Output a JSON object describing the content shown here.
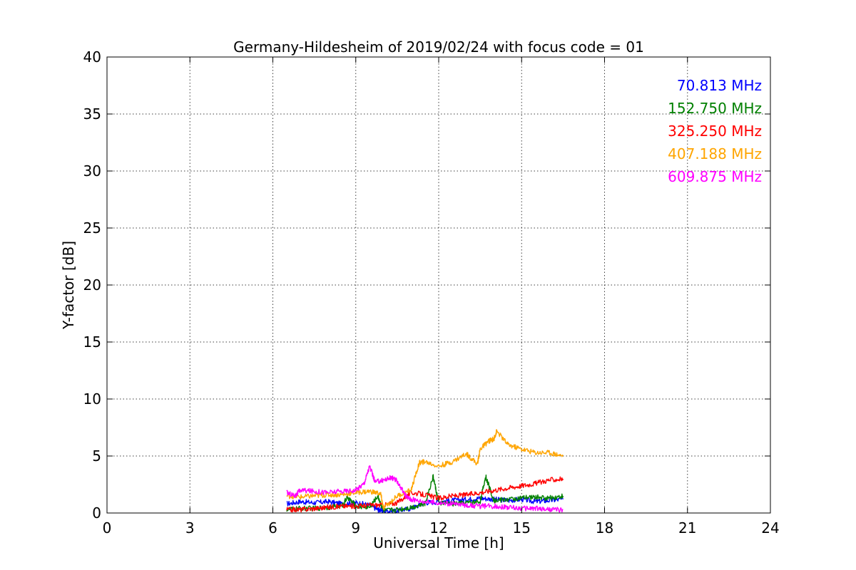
{
  "chart_data": {
    "type": "line",
    "title": "Germany-Hildesheim of 2019/02/24 with focus code = 01",
    "xlabel": "Universal Time [h]",
    "ylabel": "Y-factor [dB]",
    "xlim": [
      0,
      24
    ],
    "ylim": [
      0,
      40
    ],
    "xticks": [
      0,
      3,
      6,
      9,
      12,
      15,
      18,
      21,
      24
    ],
    "yticks": [
      0,
      5,
      10,
      15,
      20,
      25,
      30,
      35,
      40
    ],
    "xtick_labels": [
      "0",
      "3",
      "6",
      "9",
      "12",
      "15",
      "18",
      "21",
      "24"
    ],
    "ytick_labels": [
      "0",
      "5",
      "10",
      "15",
      "20",
      "25",
      "30",
      "35",
      "40"
    ],
    "grid": true,
    "legend_position": "top-right",
    "series": [
      {
        "name": "70.813 MHz",
        "color": "#0000ff",
        "x": [
          6.5,
          7.0,
          7.5,
          8.0,
          8.5,
          9.0,
          9.5,
          9.8,
          10.0,
          10.5,
          11.0,
          11.5,
          12.0,
          12.5,
          13.0,
          13.5,
          14.0,
          14.5,
          15.0,
          15.5,
          16.0,
          16.5
        ],
        "y": [
          0.8,
          1.0,
          0.9,
          1.0,
          0.8,
          0.9,
          0.7,
          0.3,
          0.2,
          0.2,
          0.4,
          0.9,
          1.0,
          1.1,
          1.2,
          1.3,
          1.2,
          1.1,
          1.2,
          1.0,
          1.1,
          1.2
        ]
      },
      {
        "name": "152.750 MHz",
        "color": "#008000",
        "x": [
          6.5,
          7.0,
          7.5,
          8.0,
          8.5,
          8.7,
          9.0,
          9.5,
          9.8,
          10.0,
          10.5,
          11.0,
          11.5,
          11.8,
          12.0,
          12.5,
          13.0,
          13.5,
          13.7,
          14.0,
          14.5,
          15.0,
          15.5,
          16.0,
          16.5
        ],
        "y": [
          0.3,
          0.4,
          0.4,
          0.5,
          0.6,
          1.4,
          0.6,
          0.5,
          1.5,
          0.2,
          0.3,
          0.5,
          0.8,
          3.2,
          0.9,
          0.8,
          0.9,
          1.0,
          3.2,
          1.1,
          1.2,
          1.3,
          1.4,
          1.3,
          1.5
        ]
      },
      {
        "name": "325.250 MHz",
        "color": "#ff0000",
        "x": [
          6.5,
          7.0,
          7.5,
          8.0,
          8.5,
          9.0,
          9.5,
          10.0,
          10.5,
          11.0,
          11.5,
          12.0,
          12.5,
          13.0,
          13.5,
          14.0,
          14.5,
          15.0,
          15.5,
          16.0,
          16.5
        ],
        "y": [
          0.3,
          0.3,
          0.4,
          0.5,
          0.6,
          0.6,
          0.7,
          0.7,
          0.9,
          1.8,
          1.6,
          1.3,
          1.5,
          1.6,
          1.8,
          2.0,
          2.2,
          2.4,
          2.6,
          2.9,
          3.0
        ]
      },
      {
        "name": "407.188 MHz",
        "color": "#ffa500",
        "x": [
          6.5,
          7.0,
          7.5,
          8.0,
          8.5,
          9.0,
          9.5,
          9.9,
          10.0,
          10.5,
          11.0,
          11.3,
          11.5,
          12.0,
          12.5,
          13.0,
          13.4,
          13.5,
          13.8,
          14.0,
          14.1,
          14.5,
          15.0,
          15.5,
          16.0,
          16.5
        ],
        "y": [
          1.5,
          1.4,
          1.5,
          1.6,
          1.6,
          1.8,
          1.9,
          1.7,
          0.4,
          1.5,
          2.0,
          4.4,
          4.5,
          4.1,
          4.5,
          5.2,
          4.3,
          5.6,
          6.3,
          6.5,
          7.2,
          6.0,
          5.6,
          5.3,
          5.3,
          5.0
        ]
      },
      {
        "name": "609.875 MHz",
        "color": "#ff00ff",
        "x": [
          6.5,
          6.8,
          7.0,
          7.5,
          8.0,
          8.5,
          9.0,
          9.3,
          9.5,
          9.7,
          10.0,
          10.3,
          10.5,
          10.8,
          11.0,
          11.5,
          12.0,
          12.5,
          13.0,
          13.5,
          14.0,
          14.5,
          15.0,
          15.5,
          16.0,
          16.5
        ],
        "y": [
          1.8,
          1.5,
          2.0,
          1.9,
          1.8,
          1.9,
          2.0,
          2.6,
          4.1,
          2.7,
          2.9,
          3.1,
          2.8,
          1.5,
          1.2,
          1.0,
          0.9,
          0.8,
          0.7,
          0.6,
          0.6,
          0.5,
          0.4,
          0.4,
          0.3,
          0.3
        ]
      }
    ]
  }
}
